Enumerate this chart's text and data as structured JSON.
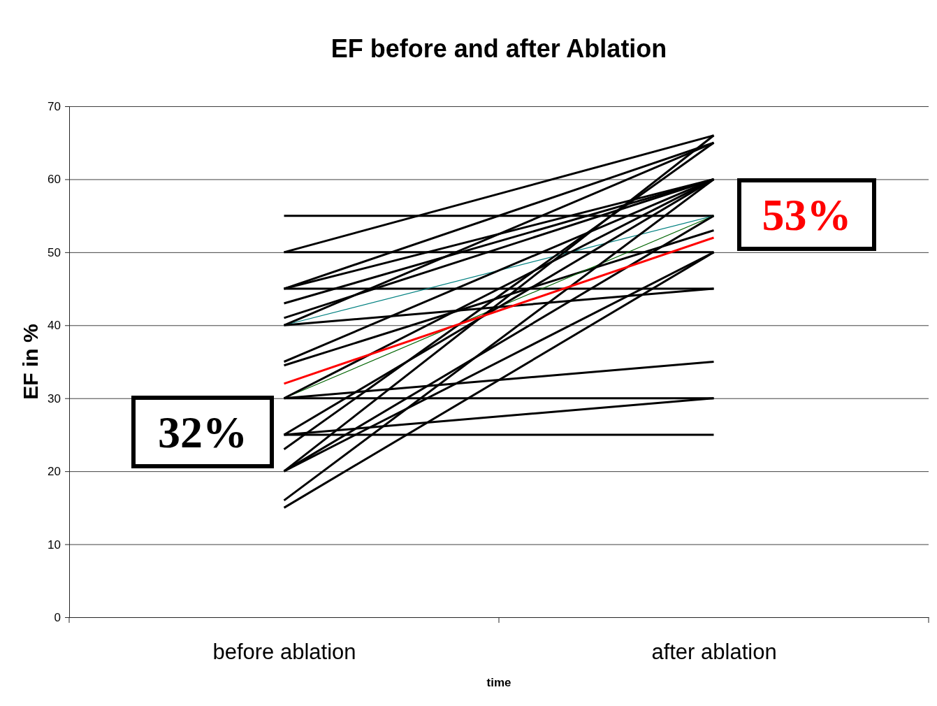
{
  "chart_data": {
    "type": "line",
    "title": "EF before and after Ablation",
    "xlabel": "time",
    "ylabel": "EF in %",
    "categories": [
      "before ablation",
      "after ablation"
    ],
    "ylim": [
      0,
      70
    ],
    "yticks": [
      0,
      10,
      20,
      30,
      40,
      50,
      60,
      70
    ],
    "grid": "y",
    "marker": "none",
    "annotations": [
      "32%",
      "53%"
    ],
    "series": [
      {
        "color": "#000000",
        "values": [
          55,
          55
        ]
      },
      {
        "color": "#000000",
        "values": [
          50,
          50
        ]
      },
      {
        "color": "#000000",
        "values": [
          50,
          66
        ]
      },
      {
        "color": "#000000",
        "values": [
          45,
          45
        ]
      },
      {
        "color": "#000000",
        "values": [
          45,
          60
        ]
      },
      {
        "color": "#000000",
        "values": [
          45,
          65
        ]
      },
      {
        "color": "#000000",
        "values": [
          43,
          60
        ]
      },
      {
        "color": "#000000",
        "values": [
          41,
          60
        ]
      },
      {
        "color": "#000000",
        "values": [
          40,
          45
        ]
      },
      {
        "color": "#008080",
        "values": [
          40,
          55
        ]
      },
      {
        "color": "#000000",
        "values": [
          40,
          65
        ]
      },
      {
        "color": "#000000",
        "values": [
          35,
          60
        ]
      },
      {
        "color": "#000000",
        "values": [
          34.5,
          53
        ]
      },
      {
        "color": "#006400",
        "values": [
          30,
          55
        ]
      },
      {
        "color": "#000000",
        "values": [
          30,
          30
        ]
      },
      {
        "color": "#000000",
        "values": [
          30,
          35
        ]
      },
      {
        "color": "#000000",
        "values": [
          30,
          60
        ]
      },
      {
        "color": "#000000",
        "values": [
          25,
          25
        ]
      },
      {
        "color": "#000000",
        "values": [
          25,
          30
        ]
      },
      {
        "color": "#000000",
        "values": [
          25,
          60
        ]
      },
      {
        "color": "#000000",
        "values": [
          23,
          65
        ]
      },
      {
        "color": "#000000",
        "values": [
          20,
          55
        ]
      },
      {
        "color": "#000000",
        "values": [
          20,
          66
        ]
      },
      {
        "color": "#000000",
        "values": [
          20,
          50
        ]
      },
      {
        "color": "#000000",
        "values": [
          16,
          60
        ]
      },
      {
        "color": "#000000",
        "values": [
          15,
          50
        ]
      },
      {
        "color": "#ff0000",
        "values": [
          32,
          52
        ]
      }
    ]
  }
}
